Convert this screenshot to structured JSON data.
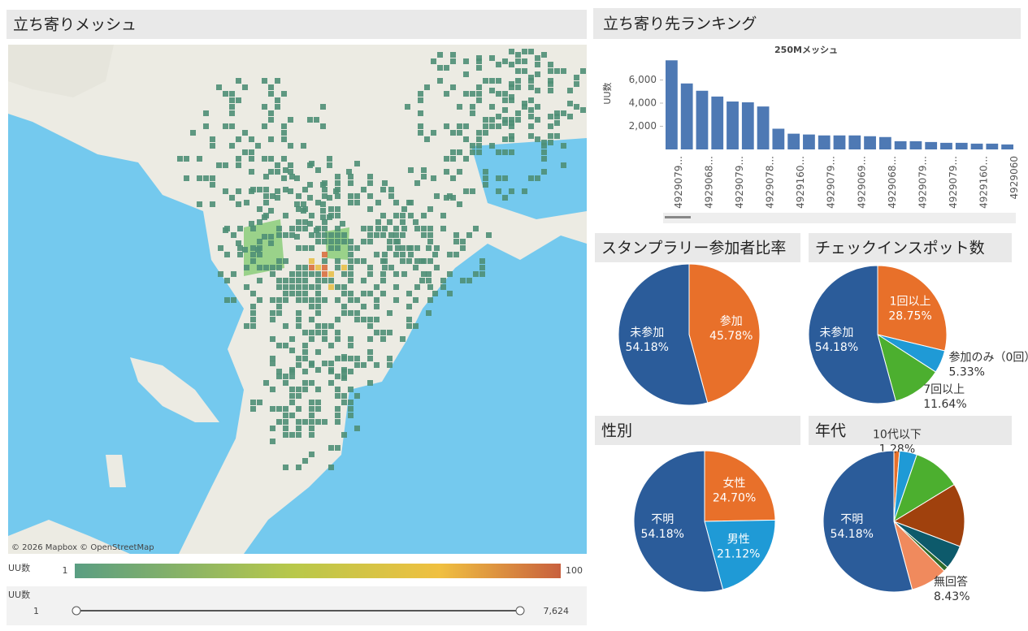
{
  "map": {
    "title": "立ち寄りメッシュ",
    "attribution": "© 2026 Mapbox © OpenStreetMap",
    "legend": {
      "title": "UU数",
      "min": 1,
      "max": 100
    },
    "slider": {
      "title": "UU数",
      "min": 1,
      "max": {
        "value": 7624,
        "label": "7,624"
      }
    }
  },
  "ranking_title": "立ち寄り先ランキング",
  "chart_data": [
    {
      "type": "bar",
      "title": "250Mメッシュ",
      "y_label": "UU数",
      "color": "#4e79b4",
      "categories": [
        "4929079...",
        null,
        "4929068...",
        null,
        "4929079...",
        null,
        "4929078...",
        null,
        "4929160...",
        null,
        "4929079...",
        null,
        "4929069...",
        null,
        "4929068...",
        null,
        "4929079...",
        null,
        "4929079...",
        null,
        "4929160...",
        null,
        "4929060"
      ],
      "values": [
        7700,
        5700,
        5070,
        4570,
        4140,
        4070,
        3710,
        1790,
        1360,
        1290,
        1210,
        1210,
        1210,
        1140,
        1070,
        710,
        710,
        640,
        570,
        570,
        500,
        500,
        430
      ],
      "ylim": [
        0,
        8000
      ],
      "yticks": [
        {
          "value": 2000,
          "label": "2,000"
        },
        {
          "value": 4000,
          "label": "4,000"
        },
        {
          "value": 6000,
          "label": "6,000"
        }
      ]
    },
    {
      "type": "pie",
      "title": "スタンプラリー参加者比率",
      "categories": [
        "参加",
        "未参加"
      ],
      "values": [
        45.78,
        54.18
      ],
      "value_labels": [
        "45.78%",
        "54.18%"
      ],
      "colors": [
        "#e8702a",
        "#2b5c9a"
      ]
    },
    {
      "type": "pie",
      "title": "チェックインスポット数",
      "categories": [
        "1回以上",
        "参加のみ（0回）",
        "7回以上",
        "未参加"
      ],
      "values": [
        28.75,
        5.33,
        11.64,
        54.18
      ],
      "value_labels": [
        "28.75%",
        "5.33%",
        "11.64%",
        "54.18%"
      ],
      "colors": [
        "#e8702a",
        "#1f9ad6",
        "#4caf2f",
        "#2b5c9a"
      ]
    },
    {
      "type": "pie",
      "title": "性別",
      "categories": [
        "女性",
        "男性",
        "不明"
      ],
      "values": [
        24.7,
        21.12,
        54.18
      ],
      "value_labels": [
        "24.70%",
        "21.12%",
        "54.18%"
      ],
      "colors": [
        "#e8702a",
        "#1f9ad6",
        "#2b5c9a"
      ]
    },
    {
      "type": "pie",
      "title": "年代",
      "categories": [
        "10代以下",
        null,
        null,
        null,
        null,
        null,
        "無回答",
        "不明"
      ],
      "values": [
        1.28,
        4,
        11,
        14.5,
        5.5,
        1.11,
        8.43,
        54.18
      ],
      "value_labels": [
        "1.28%",
        null,
        null,
        null,
        null,
        null,
        "8.43%",
        "54.18%"
      ],
      "colors": [
        "#e8702a",
        "#1f9ad6",
        "#4caf2f",
        "#a0410d",
        "#0d5a6b",
        "#2f6b2a",
        "#f08a5d",
        "#2b5c9a"
      ]
    }
  ]
}
